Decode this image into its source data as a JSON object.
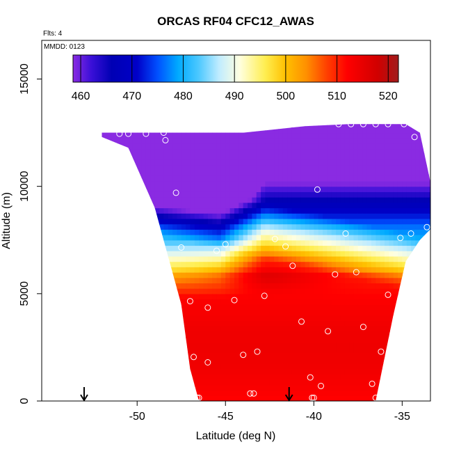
{
  "chart_data": {
    "type": "heatmap",
    "title": "ORCAS RF04 CFC12_AWAS",
    "flights_note": "Flts: 4",
    "date_note": "MMDD: 0123",
    "xlabel": "Latitude (deg N)",
    "ylabel": "Altitude (m)",
    "xlim": [
      -55.4,
      -33.4
    ],
    "ylim": [
      0,
      16800
    ],
    "x_ticks": [
      -50,
      -45,
      -40,
      -35
    ],
    "x_tick_labels": [
      "-50",
      "-45",
      "-40",
      "-35"
    ],
    "y_ticks": [
      0,
      5000,
      10000,
      15000
    ],
    "y_tick_labels": [
      "0",
      "5000",
      "10000",
      "15000"
    ],
    "colorbar": {
      "min": 458.5,
      "max": 522,
      "ticks": [
        460,
        470,
        480,
        490,
        500,
        510,
        520
      ],
      "tick_labels": [
        "460",
        "470",
        "480",
        "490",
        "500",
        "510",
        "520"
      ],
      "stops": [
        {
          "v": 458.5,
          "c": "#8a2be2"
        },
        {
          "v": 462,
          "c": "#3c10d8"
        },
        {
          "v": 466,
          "c": "#0000b4"
        },
        {
          "v": 471,
          "c": "#0000c8"
        },
        {
          "v": 475,
          "c": "#0050ff"
        },
        {
          "v": 479,
          "c": "#00aaff"
        },
        {
          "v": 483,
          "c": "#4cc8ff"
        },
        {
          "v": 487,
          "c": "#c0ecff"
        },
        {
          "v": 491,
          "c": "#ffffe0"
        },
        {
          "v": 496,
          "c": "#ffee50"
        },
        {
          "v": 500,
          "c": "#ffc000"
        },
        {
          "v": 504,
          "c": "#ff9000"
        },
        {
          "v": 508,
          "c": "#ff4000"
        },
        {
          "v": 512,
          "c": "#ff0000"
        },
        {
          "v": 518,
          "c": "#d00000"
        },
        {
          "v": 522,
          "c": "#a01c1c"
        }
      ]
    },
    "field": {
      "dx": 0.25,
      "dy": 250,
      "envelope": [
        {
          "lat": -52.0,
          "bottom": 12300,
          "top": 12500
        },
        {
          "lat": -50.5,
          "bottom": 11800,
          "top": 12500
        },
        {
          "lat": -49.0,
          "bottom": 9000,
          "top": 12500
        },
        {
          "lat": -47.5,
          "bottom": 4500,
          "top": 12500
        },
        {
          "lat": -47.0,
          "bottom": 1500,
          "top": 12500
        },
        {
          "lat": -46.5,
          "bottom": 0,
          "top": 12500
        },
        {
          "lat": -44.0,
          "bottom": 0,
          "top": 12500
        },
        {
          "lat": -40.5,
          "bottom": 0,
          "top": 12800
        },
        {
          "lat": -38.0,
          "bottom": 0,
          "top": 12900
        },
        {
          "lat": -36.5,
          "bottom": 0,
          "top": 12900
        },
        {
          "lat": -35.5,
          "bottom": 4000,
          "top": 12900
        },
        {
          "lat": -34.8,
          "bottom": 6500,
          "top": 12900
        },
        {
          "lat": -34.0,
          "bottom": 7500,
          "top": 12500
        },
        {
          "lat": -33.4,
          "bottom": 8000,
          "top": 10200
        }
      ]
    },
    "samples_lat_alt": [
      [
        -51.0,
        12450
      ],
      [
        -50.5,
        12450
      ],
      [
        -49.5,
        12450
      ],
      [
        -48.5,
        12500
      ],
      [
        -48.4,
        12150
      ],
      [
        -47.8,
        9700
      ],
      [
        -47.5,
        7150
      ],
      [
        -45.5,
        7000
      ],
      [
        -45.0,
        7300
      ],
      [
        -44.5,
        4700
      ],
      [
        -46.0,
        4350
      ],
      [
        -47.0,
        4650
      ],
      [
        -42.2,
        7550
      ],
      [
        -41.6,
        7200
      ],
      [
        -41.2,
        6300
      ],
      [
        -38.8,
        5900
      ],
      [
        -37.6,
        6000
      ],
      [
        -35.8,
        4950
      ],
      [
        -36.2,
        2300
      ],
      [
        -37.2,
        3450
      ],
      [
        -39.2,
        3250
      ],
      [
        -40.7,
        3700
      ],
      [
        -42.8,
        4900
      ],
      [
        -43.2,
        2300
      ],
      [
        -44.0,
        2150
      ],
      [
        -46.0,
        1800
      ],
      [
        -46.8,
        2050
      ],
      [
        -40.2,
        1100
      ],
      [
        -39.6,
        700
      ],
      [
        -36.7,
        800
      ],
      [
        -36.5,
        150
      ],
      [
        -40.1,
        150
      ],
      [
        -40.0,
        150
      ],
      [
        -43.6,
        350
      ],
      [
        -43.4,
        350
      ],
      [
        -46.6,
        150
      ],
      [
        -46.5,
        150
      ],
      [
        -39.8,
        9850
      ],
      [
        -38.2,
        7800
      ],
      [
        -34.5,
        7800
      ],
      [
        -35.1,
        7600
      ],
      [
        -33.6,
        8100
      ],
      [
        -38.6,
        12900
      ],
      [
        -37.9,
        12900
      ],
      [
        -37.2,
        12900
      ],
      [
        -36.5,
        12900
      ],
      [
        -35.8,
        12900
      ],
      [
        -34.9,
        12900
      ],
      [
        -34.3,
        12300
      ]
    ],
    "arrows_lat": [
      -53.0,
      -41.4
    ]
  }
}
